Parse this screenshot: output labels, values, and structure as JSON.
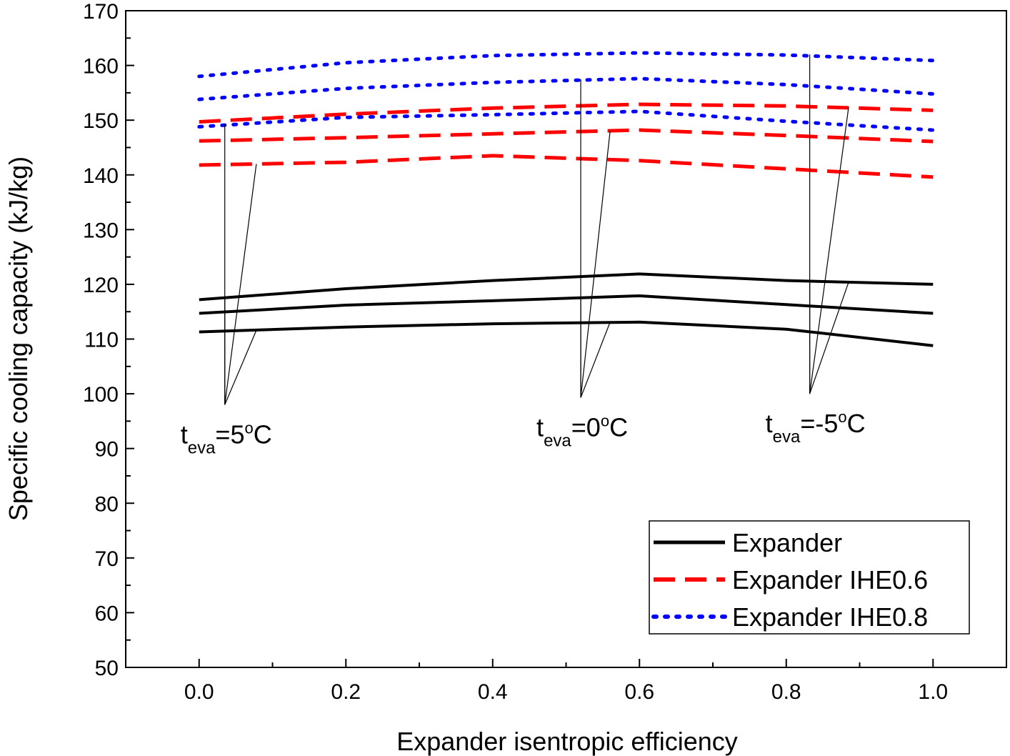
{
  "chart_data": {
    "type": "line",
    "xlabel": "Expander isentropic efficiency",
    "ylabel": "Specific cooling capacity (kJ/kg)",
    "xlim": [
      -0.1,
      1.1
    ],
    "ylim": [
      50,
      170
    ],
    "xticks": [
      "0.0",
      "0.2",
      "0.4",
      "0.6",
      "0.8",
      "1.0"
    ],
    "yticks": [
      "50",
      "60",
      "70",
      "80",
      "90",
      "100",
      "110",
      "120",
      "130",
      "140",
      "150",
      "160",
      "170"
    ],
    "x": [
      0.0,
      0.2,
      0.4,
      0.6,
      0.8,
      1.0
    ],
    "legend_position": "bottom-right",
    "series": [
      {
        "name": "Expander",
        "group": "Expander",
        "color": "#000000",
        "style": "solid",
        "teva": "5",
        "values": [
          111.3,
          112.2,
          112.8,
          113.1,
          111.8,
          108.8
        ]
      },
      {
        "name": "Expander",
        "group": "Expander",
        "color": "#000000",
        "style": "solid",
        "teva": "0",
        "values": [
          114.7,
          116.2,
          117.0,
          117.9,
          116.3,
          114.7
        ]
      },
      {
        "name": "Expander",
        "group": "Expander",
        "color": "#000000",
        "style": "solid",
        "teva": "-5",
        "values": [
          117.2,
          119.2,
          120.7,
          121.9,
          120.7,
          120.0
        ]
      },
      {
        "name": "Expander IHE0.6",
        "group": "Expander IHE0.6",
        "color": "#ff0000",
        "style": "dashed",
        "teva": "5",
        "values": [
          141.8,
          142.3,
          143.5,
          142.6,
          141.1,
          139.6
        ]
      },
      {
        "name": "Expander IHE0.6",
        "group": "Expander IHE0.6",
        "color": "#ff0000",
        "style": "dashed",
        "teva": "0",
        "values": [
          146.2,
          146.8,
          147.5,
          148.2,
          147.2,
          146.1
        ]
      },
      {
        "name": "Expander IHE0.6",
        "group": "Expander IHE0.6",
        "color": "#ff0000",
        "style": "dashed",
        "teva": "-5",
        "values": [
          149.7,
          151.1,
          152.2,
          152.9,
          152.6,
          151.8
        ]
      },
      {
        "name": "Expander IHE0.8",
        "group": "Expander IHE0.8",
        "color": "#0000ff",
        "style": "dotted",
        "teva": "5",
        "values": [
          148.8,
          150.5,
          151.0,
          151.6,
          149.8,
          148.2
        ]
      },
      {
        "name": "Expander IHE0.8",
        "group": "Expander IHE0.8",
        "color": "#0000ff",
        "style": "dotted",
        "teva": "0",
        "values": [
          153.8,
          155.8,
          156.9,
          157.6,
          156.5,
          154.8
        ]
      },
      {
        "name": "Expander IHE0.8",
        "group": "Expander IHE0.8",
        "color": "#0000ff",
        "style": "dotted",
        "teva": "-5",
        "values": [
          158.0,
          160.5,
          161.8,
          162.3,
          161.9,
          160.9
        ]
      }
    ],
    "legend": [
      {
        "label": "Expander",
        "color": "#000000",
        "style": "solid"
      },
      {
        "label": "Expander IHE0.6",
        "color": "#ff0000",
        "style": "dashed"
      },
      {
        "label": "Expander IHE0.8",
        "color": "#0000ff",
        "style": "dotted"
      }
    ],
    "annotations": [
      {
        "t": "t",
        "sub": "eva",
        "rest1": "=5",
        "sup": "o",
        "rest2": "C",
        "anchor_x": 0.035,
        "anchor_y": 98,
        "targets": [
          [
            0.035,
            149.2
          ],
          [
            0.078,
            142.0
          ],
          [
            0.035,
            117.5
          ],
          [
            0.078,
            111.6
          ]
        ]
      },
      {
        "t": "t",
        "sub": "eva",
        "rest1": "=0",
        "sup": "o",
        "rest2": "C",
        "anchor_x": 0.52,
        "anchor_y": 99.3,
        "targets": [
          [
            0.52,
            157.5
          ],
          [
            0.56,
            148.0
          ],
          [
            0.52,
            117.6
          ],
          [
            0.56,
            113.1
          ]
        ]
      },
      {
        "t": "t",
        "sub": "eva",
        "rest1": "=-5",
        "sup": "o",
        "rest2": "C",
        "anchor_x": 0.832,
        "anchor_y": 100,
        "targets": [
          [
            0.832,
            162.0
          ],
          [
            0.885,
            152.4
          ],
          [
            0.832,
            120.7
          ],
          [
            0.885,
            120.4
          ]
        ]
      }
    ]
  }
}
